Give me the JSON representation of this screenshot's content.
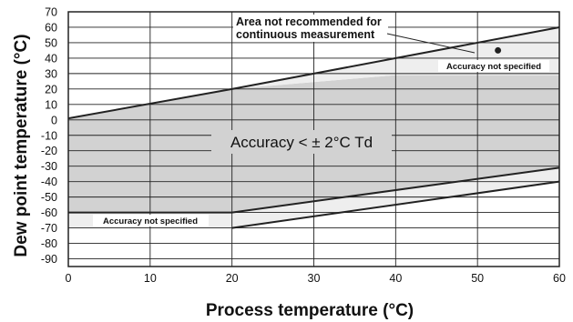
{
  "chart_data": {
    "type": "area",
    "xlabel": "Process temperature (°C)",
    "ylabel": "Dew point temperature (°C)",
    "xlim": [
      0,
      60
    ],
    "ylim": [
      -95,
      70
    ],
    "x_ticks": [
      0,
      10,
      20,
      30,
      40,
      50,
      60
    ],
    "y_ticks": [
      70,
      60,
      50,
      40,
      30,
      20,
      10,
      0,
      -10,
      -20,
      -30,
      -40,
      -50,
      -60,
      -70,
      -80,
      -90
    ],
    "grid": true,
    "regions": [
      {
        "name": "Accuracy < ± 2°C Td",
        "fill": "#d2d2d2",
        "polygon": [
          [
            0,
            1
          ],
          [
            20,
            20
          ],
          [
            40,
            29
          ],
          [
            60,
            29
          ],
          [
            60,
            -31
          ],
          [
            20,
            -60
          ],
          [
            0,
            -60
          ]
        ]
      },
      {
        "name": "Accuracy not specified (upper)",
        "fill": "#eeeeee",
        "polygon": [
          [
            20,
            20
          ],
          [
            60,
            60
          ],
          [
            60,
            29
          ],
          [
            40,
            29
          ]
        ]
      },
      {
        "name": "Accuracy not specified (lower)",
        "fill": "#eeeeee",
        "polygon": [
          [
            0,
            -60
          ],
          [
            20,
            -60
          ],
          [
            60,
            -31
          ],
          [
            60,
            -40
          ],
          [
            20,
            -70
          ],
          [
            0,
            -70
          ]
        ]
      }
    ],
    "boundary_lines": [
      {
        "name": "upper limit",
        "points": [
          [
            0,
            1
          ],
          [
            20,
            20
          ],
          [
            60,
            60
          ]
        ]
      },
      {
        "name": "lower limit",
        "points": [
          [
            0,
            -60
          ],
          [
            20,
            -60
          ],
          [
            60,
            -31
          ]
        ]
      },
      {
        "name": "lowest limit",
        "points": [
          [
            20,
            -70
          ],
          [
            60,
            -40
          ]
        ]
      }
    ],
    "annotations": {
      "center": "Accuracy < ± 2°C Td",
      "upper_not_specified": "Accuracy not specified",
      "lower_not_specified": "Accuracy not specified",
      "not_recommended_line1": "Area not recommended for",
      "not_recommended_line2": "continuous measurement"
    },
    "marker_point": [
      52.5,
      45
    ]
  }
}
